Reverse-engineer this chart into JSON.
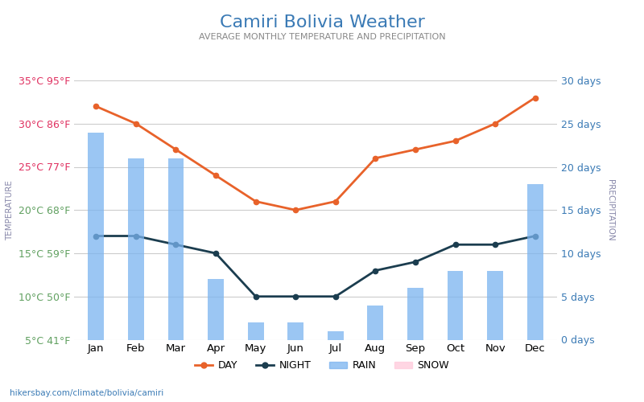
{
  "title": "Camiri Bolivia Weather",
  "subtitle": "AVERAGE MONTHLY TEMPERATURE AND PRECIPITATION",
  "footer": "hikersbay.com/climate/bolivia/camiri",
  "months": [
    "Jan",
    "Feb",
    "Mar",
    "Apr",
    "May",
    "Jun",
    "Jul",
    "Aug",
    "Sep",
    "Oct",
    "Nov",
    "Dec"
  ],
  "day_temp": [
    32,
    30,
    27,
    24,
    21,
    20,
    21,
    26,
    27,
    28,
    30,
    33
  ],
  "night_temp": [
    17,
    17,
    16,
    15,
    10,
    10,
    10,
    13,
    14,
    16,
    16,
    17
  ],
  "rain_days": [
    24,
    21,
    21,
    7,
    2,
    2,
    1,
    4,
    6,
    8,
    8,
    18
  ],
  "snow_days": [
    0,
    0,
    0,
    0,
    0,
    0,
    0,
    0,
    0,
    0,
    0,
    0
  ],
  "temp_ylim": [
    5,
    35
  ],
  "temp_yticks": [
    5,
    10,
    15,
    20,
    25,
    30,
    35
  ],
  "temp_ytick_labels": [
    "5°C 41°F",
    "10°C 50°F",
    "15°C 59°F",
    "20°C 68°F",
    "25°C 77°F",
    "30°C 86°F",
    "35°C 95°F"
  ],
  "precip_ylim": [
    0,
    30
  ],
  "precip_yticks": [
    0,
    5,
    10,
    15,
    20,
    25,
    30
  ],
  "precip_ytick_labels": [
    "0 days",
    "5 days",
    "10 days",
    "15 days",
    "20 days",
    "25 days",
    "30 days"
  ],
  "day_color": "#e8622a",
  "night_color": "#1b3d4f",
  "rain_color": "#7ab3ef",
  "snow_color": "#ffccdd",
  "bg_color": "#ffffff",
  "title_color": "#3a7ab5",
  "subtitle_color": "#888888",
  "left_label_hot_color": "#e03060",
  "left_label_cold_color": "#60a060",
  "right_label_color": "#3a7ab5",
  "left_axis_label": "TEMPERATURE",
  "right_axis_label": "PRECIPITATION",
  "grid_color": "#cccccc",
  "bar_alpha": 0.75,
  "hot_threshold": 25,
  "bar_width": 0.4,
  "title_fontsize": 16,
  "subtitle_fontsize": 8,
  "tick_fontsize": 9,
  "month_fontsize": 9.5,
  "axis_label_fontsize": 7.5,
  "legend_fontsize": 9,
  "footer_fontsize": 7.5
}
